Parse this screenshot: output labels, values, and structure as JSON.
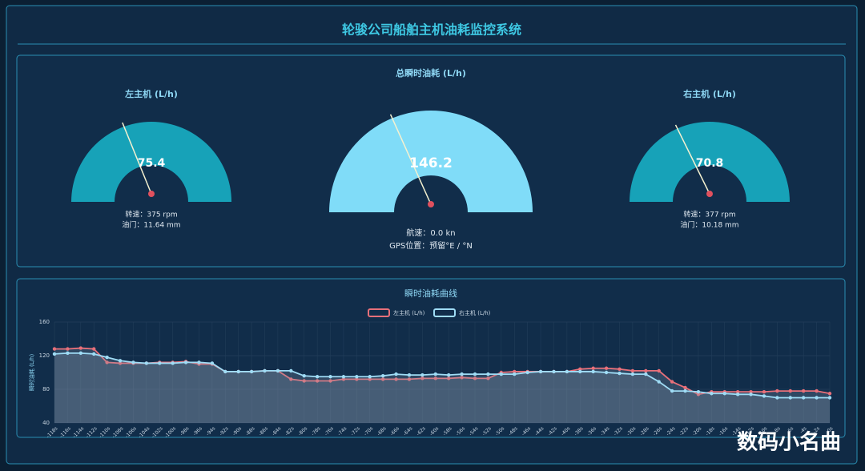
{
  "header": {
    "title": "轮骏公司船舶主机油耗监控系统"
  },
  "watermark": "数码小名曲",
  "chart_data": [
    {
      "type": "gauge",
      "title": "左主机 (L/h)",
      "values": [
        75.4
      ],
      "ylim": [
        0,
        200
      ],
      "color": "#17a2b8",
      "notes": [
        "转速：375 rpm",
        "油门：11.64 mm"
      ]
    },
    {
      "type": "gauge",
      "title": "总瞬时油耗 (L/h)",
      "values": [
        146.2
      ],
      "ylim": [
        0,
        400
      ],
      "color": "#80dcf8",
      "notes": [
        "航速：0.0 kn",
        "GPS位置：预留°E / °N"
      ]
    },
    {
      "type": "gauge",
      "title": "右主机 (L/h)",
      "values": [
        70.8
      ],
      "ylim": [
        0,
        200
      ],
      "color": "#17a2b8",
      "notes": [
        "转速：377 rpm",
        "油门：10.18 mm"
      ]
    },
    {
      "type": "line",
      "title": "瞬时油耗曲线",
      "y_label": "瞬时油耗 (L/h)",
      "categories": [
        "-118s",
        "-116s",
        "-114s",
        "-112s",
        "-110s",
        "-108s",
        "-106s",
        "-104s",
        "-102s",
        "-100s",
        "-98s",
        "-96s",
        "-94s",
        "-92s",
        "-90s",
        "-88s",
        "-86s",
        "-84s",
        "-82s",
        "-80s",
        "-78s",
        "-76s",
        "-74s",
        "-72s",
        "-70s",
        "-68s",
        "-66s",
        "-64s",
        "-62s",
        "-60s",
        "-58s",
        "-56s",
        "-54s",
        "-52s",
        "-50s",
        "-48s",
        "-46s",
        "-44s",
        "-42s",
        "-40s",
        "-38s",
        "-36s",
        "-34s",
        "-32s",
        "-30s",
        "-28s",
        "-26s",
        "-24s",
        "-22s",
        "-20s",
        "-18s",
        "-16s",
        "-14s",
        "-12s",
        "-10s",
        "-8s",
        "-6s",
        "-4s",
        "-2s",
        "0s"
      ],
      "series": [
        {
          "name": "左主机 (L/h)",
          "color": "#e8707a",
          "values": [
            128,
            128,
            129,
            128,
            112,
            111,
            111,
            111,
            112,
            112,
            113,
            110,
            110,
            101,
            101,
            101,
            102,
            102,
            92,
            90,
            90,
            90,
            92,
            92,
            92,
            92,
            92,
            92,
            93,
            93,
            93,
            94,
            93,
            93,
            100,
            101,
            101,
            101,
            101,
            101,
            104,
            105,
            105,
            104,
            102,
            102,
            102,
            89,
            82,
            74,
            77,
            77,
            77,
            77,
            77,
            78,
            78,
            78,
            78,
            75
          ]
        },
        {
          "name": "右主机 (L/h)",
          "color": "#9fdcf5",
          "values": [
            122,
            123,
            123,
            122,
            118,
            114,
            112,
            111,
            111,
            111,
            112,
            112,
            111,
            101,
            101,
            101,
            102,
            102,
            102,
            96,
            95,
            95,
            95,
            95,
            95,
            96,
            98,
            97,
            97,
            98,
            97,
            98,
            98,
            98,
            98,
            98,
            100,
            101,
            101,
            101,
            101,
            101,
            100,
            99,
            98,
            98,
            89,
            78,
            78,
            77,
            75,
            75,
            74,
            74,
            72,
            70,
            70,
            70,
            70,
            70
          ]
        }
      ],
      "ylim": [
        40,
        160
      ],
      "yticks": [
        40,
        80,
        120,
        160
      ],
      "grid": true
    }
  ]
}
